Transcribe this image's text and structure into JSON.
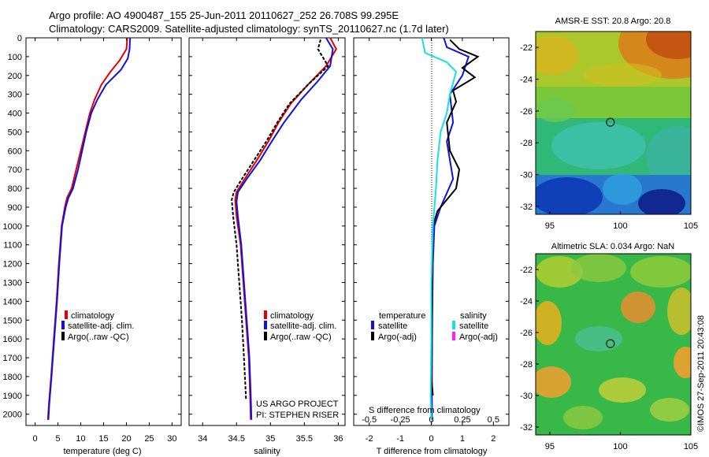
{
  "header": {
    "line1": "Argo profile: AO 4900487_155 25-Jun-2011 20110627_252 26.708S 99.295E",
    "line2": "Climatology: CARS2009. Satellite-adjusted climatology: synTS_20110627.nc (1.7d later)"
  },
  "colors": {
    "climatology": "#e00000",
    "satellite": "#1010e0",
    "argo": "#000000",
    "sat_salinity": "#18e0e0",
    "argo_salinity": "#ff20ff"
  },
  "chart_data": [
    {
      "type": "line",
      "id": "temperature",
      "xlabel": "temperature (deg C)",
      "ylabel": "",
      "xlim": [
        -2,
        32
      ],
      "ylim": [
        2060,
        0
      ],
      "x_ticks": [
        0,
        5,
        10,
        15,
        20,
        25,
        30
      ],
      "y_ticks": [
        0,
        100,
        200,
        300,
        400,
        500,
        600,
        700,
        800,
        900,
        1000,
        1100,
        1200,
        1300,
        1400,
        1500,
        1600,
        1700,
        1800,
        1900,
        2000
      ],
      "legend": [
        "climatology",
        "satellite-adj. clim.",
        "Argo(..raw -QC)"
      ],
      "series": [
        {
          "name": "climatology",
          "color": "red",
          "points": [
            [
              20.2,
              0
            ],
            [
              20.0,
              60
            ],
            [
              18.5,
              120
            ],
            [
              16.5,
              180
            ],
            [
              14.5,
              250
            ],
            [
              13.0,
              330
            ],
            [
              12.0,
              400
            ],
            [
              11.0,
              500
            ],
            [
              10.0,
              600
            ],
            [
              9.0,
              700
            ],
            [
              8.0,
              800
            ],
            [
              7.0,
              850
            ],
            [
              6.5,
              900
            ],
            [
              5.8,
              1000
            ],
            [
              5.2,
              1200
            ],
            [
              4.7,
              1400
            ],
            [
              4.1,
              1600
            ],
            [
              3.5,
              1800
            ],
            [
              3.0,
              1950
            ],
            [
              2.8,
              2030
            ]
          ]
        },
        {
          "name": "satellite-adj. clim.",
          "color": "blue",
          "points": [
            [
              20.8,
              0
            ],
            [
              20.7,
              60
            ],
            [
              20.3,
              110
            ],
            [
              18.8,
              170
            ],
            [
              15.5,
              250
            ],
            [
              13.6,
              330
            ],
            [
              12.3,
              400
            ],
            [
              11.2,
              500
            ],
            [
              10.3,
              600
            ],
            [
              9.4,
              700
            ],
            [
              8.3,
              800
            ],
            [
              7.3,
              850
            ],
            [
              6.7,
              900
            ],
            [
              5.9,
              1000
            ],
            [
              5.3,
              1200
            ],
            [
              4.8,
              1400
            ],
            [
              4.2,
              1600
            ],
            [
              3.6,
              1800
            ],
            [
              3.1,
              1950
            ],
            [
              2.9,
              2030
            ]
          ]
        }
      ]
    },
    {
      "type": "line",
      "id": "salinity",
      "xlabel": "salinity",
      "ylabel": "",
      "xlim": [
        33.8,
        36.1
      ],
      "ylim": [
        2060,
        0
      ],
      "x_ticks": [
        34,
        34.5,
        35,
        35.5,
        36
      ],
      "legend": [
        "climatology",
        "satellite-adj. clim.",
        "Argo(..raw -QC)"
      ],
      "annotation": [
        "US ARGO PROJECT",
        "PI: STEPHEN RISER"
      ],
      "series": [
        {
          "name": "climatology",
          "color": "red",
          "points": [
            [
              35.88,
              0
            ],
            [
              35.97,
              60
            ],
            [
              35.82,
              150
            ],
            [
              35.55,
              250
            ],
            [
              35.3,
              350
            ],
            [
              35.12,
              450
            ],
            [
              34.97,
              550
            ],
            [
              34.8,
              650
            ],
            [
              34.62,
              750
            ],
            [
              34.5,
              820
            ],
            [
              34.48,
              860
            ],
            [
              34.5,
              950
            ],
            [
              34.56,
              1100
            ],
            [
              34.6,
              1300
            ],
            [
              34.64,
              1500
            ],
            [
              34.68,
              1700
            ],
            [
              34.7,
              1900
            ],
            [
              34.71,
              2030
            ]
          ]
        },
        {
          "name": "satellite-adj. clim.",
          "color": "blue",
          "points": [
            [
              35.82,
              0
            ],
            [
              35.92,
              60
            ],
            [
              35.88,
              150
            ],
            [
              35.7,
              230
            ],
            [
              35.45,
              330
            ],
            [
              35.2,
              450
            ],
            [
              35.02,
              550
            ],
            [
              34.85,
              650
            ],
            [
              34.65,
              750
            ],
            [
              34.52,
              820
            ],
            [
              34.5,
              870
            ],
            [
              34.52,
              950
            ],
            [
              34.57,
              1100
            ],
            [
              34.61,
              1300
            ],
            [
              34.65,
              1500
            ],
            [
              34.69,
              1700
            ],
            [
              34.71,
              1900
            ],
            [
              34.72,
              2030
            ]
          ]
        },
        {
          "name": "Argo(..raw -QC)",
          "color": "black",
          "dashed": true,
          "points": [
            [
              35.74,
              10
            ],
            [
              35.7,
              60
            ],
            [
              35.85,
              150
            ],
            [
              35.55,
              250
            ],
            [
              35.28,
              350
            ],
            [
              35.1,
              450
            ],
            [
              34.94,
              550
            ],
            [
              34.76,
              650
            ],
            [
              34.58,
              750
            ],
            [
              34.46,
              820
            ],
            [
              34.43,
              860
            ],
            [
              34.45,
              950
            ],
            [
              34.5,
              1100
            ],
            [
              34.54,
              1300
            ],
            [
              34.58,
              1500
            ],
            [
              34.61,
              1700
            ],
            [
              34.63,
              1850
            ],
            [
              34.64,
              1920
            ]
          ]
        }
      ]
    },
    {
      "type": "line",
      "id": "difference",
      "xlabel": "T difference from climatology",
      "xlabel2": "S difference from climatology",
      "xlim": [
        -2.5,
        2.5
      ],
      "ylim": [
        2060,
        0
      ],
      "x_ticks": [
        -2,
        -1,
        0,
        1,
        2
      ],
      "x_ticks_salinity": [
        "-0.5",
        "-0.25",
        "0",
        "0.25",
        "0.5"
      ],
      "legend_headers": [
        "temperature",
        "salinity"
      ],
      "legend": [
        "satellite",
        "Argo(-adj)",
        "satellite",
        "Argo(-adj)"
      ],
      "series": [
        {
          "name": "satellite",
          "group": "temperature",
          "color": "blue",
          "points": [
            [
              0.4,
              0
            ],
            [
              0.5,
              50
            ],
            [
              1.2,
              100
            ],
            [
              1.0,
              200
            ],
            [
              0.6,
              300
            ],
            [
              0.7,
              450
            ],
            [
              0.5,
              550
            ],
            [
              0.6,
              650
            ],
            [
              0.7,
              750
            ],
            [
              0.3,
              900
            ],
            [
              0.1,
              1000
            ],
            [
              0.05,
              1200
            ],
            [
              0.03,
              1500
            ],
            [
              0.02,
              1800
            ],
            [
              0.02,
              2030
            ]
          ]
        },
        {
          "name": "Argo(-adj)",
          "group": "temperature",
          "color": "black",
          "points": [
            [
              0.6,
              10
            ],
            [
              0.9,
              60
            ],
            [
              1.5,
              100
            ],
            [
              1.0,
              160
            ],
            [
              1.4,
              210
            ],
            [
              0.7,
              280
            ],
            [
              0.8,
              340
            ],
            [
              0.5,
              450
            ],
            [
              0.6,
              600
            ],
            [
              0.9,
              700
            ],
            [
              0.8,
              800
            ],
            [
              0.2,
              920
            ],
            [
              0.05,
              1000
            ],
            [
              0.03,
              1200
            ],
            [
              0.02,
              1500
            ],
            [
              0.0,
              1800
            ],
            [
              0.05,
              1900
            ]
          ]
        },
        {
          "name": "satellite",
          "group": "salinity",
          "color": "cyan",
          "points": [
            [
              -0.3,
              0
            ],
            [
              -0.2,
              80
            ],
            [
              0.5,
              130
            ],
            [
              0.8,
              180
            ],
            [
              0.6,
              300
            ],
            [
              0.5,
              400
            ],
            [
              0.3,
              500
            ],
            [
              0.2,
              650
            ],
            [
              0.15,
              800
            ],
            [
              0.05,
              1000
            ],
            [
              0.0,
              1300
            ],
            [
              0.0,
              1600
            ],
            [
              -0.02,
              1900
            ],
            [
              0.0,
              2030
            ]
          ]
        },
        {
          "name": "Argo(-adj)",
          "group": "salinity",
          "color": "magenta",
          "points": []
        }
      ]
    },
    {
      "type": "heatmap",
      "id": "sst-map",
      "title": "AMSR-E SST: 20.8 Argo: 20.8",
      "xlim": [
        94,
        105
      ],
      "ylim": [
        -32.5,
        -21
      ],
      "x_ticks": [
        95,
        100,
        105
      ],
      "y_ticks": [
        -22,
        -24,
        -26,
        -28,
        -30,
        -32
      ],
      "marker": {
        "lon": 99.295,
        "lat": -26.708
      }
    },
    {
      "type": "heatmap",
      "id": "sla-map",
      "title": "Altimetric SLA: 0.034 Argo: NaN",
      "xlim": [
        94,
        105
      ],
      "ylim": [
        -32.5,
        -21
      ],
      "x_ticks": [
        95,
        100,
        105
      ],
      "y_ticks": [
        -22,
        -24,
        -26,
        -28,
        -30,
        -32
      ],
      "marker": {
        "lon": 99.295,
        "lat": -26.708
      }
    }
  ],
  "credit": "©IMOS 27-Sep-2011 20:43:08"
}
